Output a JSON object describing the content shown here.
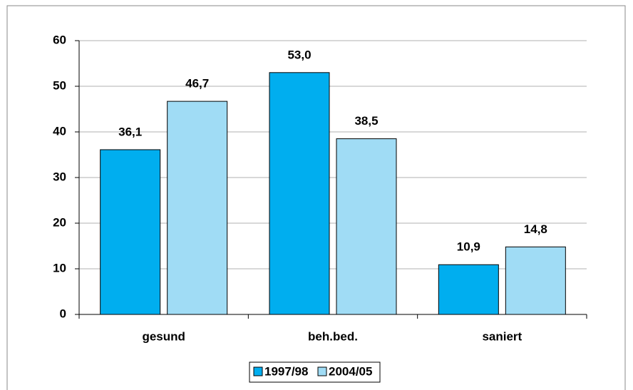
{
  "chart_data": {
    "type": "bar",
    "categories": [
      "gesund",
      "beh.bed.",
      "saniert"
    ],
    "series": [
      {
        "name": "1997/98",
        "color": "#00aeef",
        "values": [
          36.1,
          53.0,
          10.9
        ],
        "value_labels": [
          "36,1",
          "53,0",
          "10,9"
        ]
      },
      {
        "name": "2004/05",
        "color": "#a0dcf5",
        "values": [
          46.7,
          38.5,
          14.8
        ],
        "value_labels": [
          "46,7",
          "38,5",
          "14,8"
        ]
      }
    ],
    "ylim": [
      0,
      60
    ],
    "yticks": [
      0,
      10,
      20,
      30,
      40,
      50,
      60
    ],
    "grid": true,
    "legend": "bottom"
  }
}
